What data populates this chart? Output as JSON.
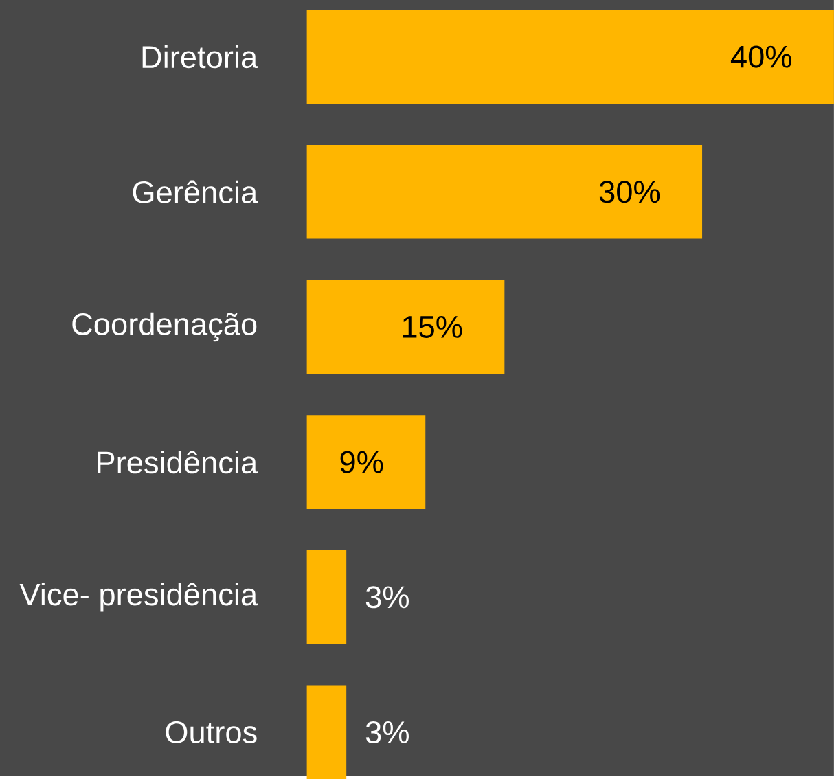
{
  "chart_data": {
    "type": "bar",
    "orientation": "horizontal",
    "categories": [
      "Diretoria",
      "Gerência",
      "Coordenação",
      "Presidência",
      "Vice- presidência",
      "Outros"
    ],
    "values": [
      40,
      30,
      15,
      9,
      3,
      3
    ],
    "color": "#ffb600",
    "value_labels": [
      "40%",
      "30%",
      "15%",
      "9%",
      "3%",
      "3%"
    ]
  }
}
